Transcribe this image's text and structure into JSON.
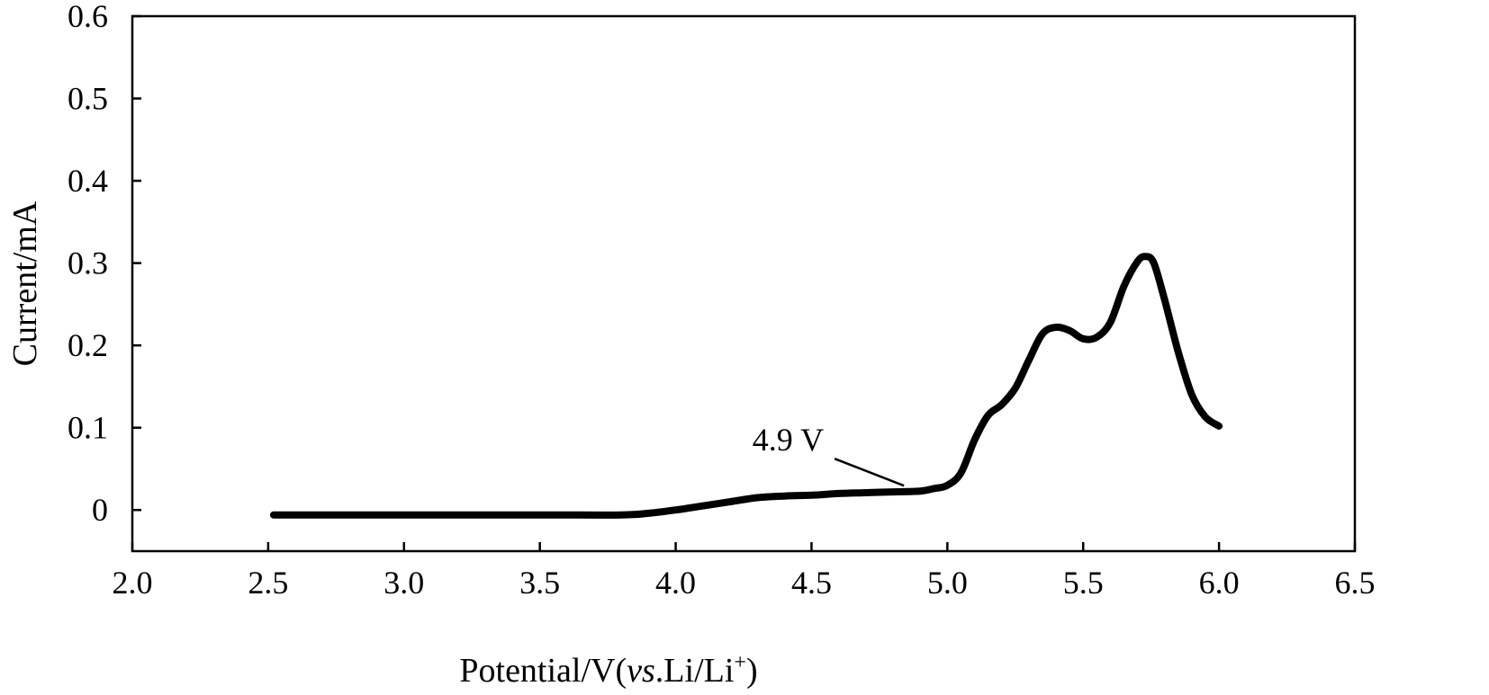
{
  "chart_data": {
    "type": "line",
    "xlabel_parts": {
      "prefix": "Potential/V(",
      "italic": "vs",
      "middle": ".Li/Li",
      "superscript": "+",
      "suffix": ")"
    },
    "ylabel": "Current/mA",
    "xlim": [
      2.0,
      6.5
    ],
    "ylim": [
      -0.05,
      0.6
    ],
    "x_ticks": [
      2.0,
      2.5,
      3.0,
      3.5,
      4.0,
      4.5,
      5.0,
      5.5,
      6.0,
      6.5
    ],
    "x_tick_labels": [
      "2.0",
      "2.5",
      "3.0",
      "3.5",
      "4.0",
      "4.5",
      "5.0",
      "5.5",
      "6.0",
      "6.5"
    ],
    "y_ticks": [
      0,
      0.1,
      0.2,
      0.3,
      0.4,
      0.5,
      0.6
    ],
    "y_tick_labels": [
      "0",
      "0.1",
      "0.2",
      "0.3",
      "0.4",
      "0.5",
      "0.6"
    ],
    "grid": false,
    "line_color": "#000000",
    "series": [
      {
        "x": [
          2.52,
          3.0,
          3.5,
          3.8,
          3.9,
          4.0,
          4.1,
          4.2,
          4.3,
          4.4,
          4.5,
          4.6,
          4.7,
          4.8,
          4.9,
          4.95,
          5.0,
          5.05,
          5.1,
          5.15,
          5.2,
          5.25,
          5.3,
          5.35,
          5.4,
          5.45,
          5.5,
          5.55,
          5.6,
          5.65,
          5.7,
          5.73,
          5.76,
          5.8,
          5.85,
          5.9,
          5.95,
          6.0
        ],
        "y": [
          -0.006,
          -0.006,
          -0.006,
          -0.006,
          -0.004,
          0.0,
          0.005,
          0.01,
          0.015,
          0.017,
          0.018,
          0.02,
          0.021,
          0.022,
          0.023,
          0.026,
          0.03,
          0.045,
          0.085,
          0.115,
          0.128,
          0.148,
          0.182,
          0.214,
          0.222,
          0.218,
          0.208,
          0.21,
          0.228,
          0.272,
          0.302,
          0.308,
          0.3,
          0.255,
          0.192,
          0.14,
          0.113,
          0.102
        ]
      }
    ],
    "annotations": [
      {
        "text": "4.9 V",
        "x": 4.9,
        "y": 0.023
      }
    ]
  }
}
